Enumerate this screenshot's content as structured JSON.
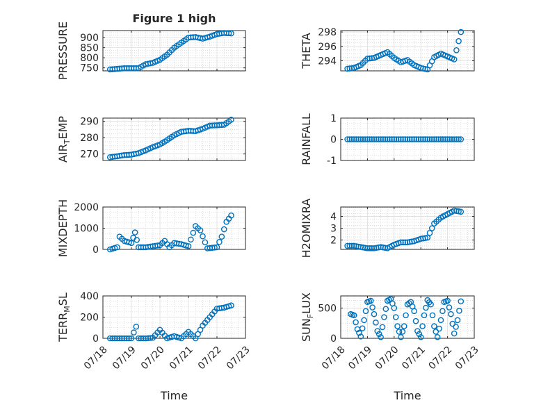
{
  "figure": {
    "title": "Figure 1 high",
    "xlabel": "Time",
    "colors": {
      "marker": "#0072BD",
      "axis": "#262626",
      "grid": "#c8c8c8",
      "background": "#ffffff"
    }
  },
  "chart_data": [
    {
      "type": "scatter",
      "title": "Figure 1 high",
      "ylabel": "PRESSURE",
      "xlabel": "",
      "x_axis": "date",
      "xlim": [
        "07/18",
        "07/23"
      ],
      "ylim": [
        735,
        935
      ],
      "yticks": [
        750,
        800,
        850,
        900
      ],
      "xticks": [
        "07/18",
        "07/19",
        "07/20",
        "07/21",
        "07/22",
        "07/23"
      ],
      "xtick_labels_shown": false,
      "grid": true,
      "minor_grid": true,
      "marker": "open-circle",
      "x": [
        "07/18 06:00",
        "07/18 12:00",
        "07/18 18:00",
        "07/19 00:00",
        "07/19 06:00",
        "07/19 12:00",
        "07/19 18:00",
        "07/20 00:00",
        "07/20 06:00",
        "07/20 12:00",
        "07/20 18:00",
        "07/21 00:00",
        "07/21 06:00",
        "07/21 12:00",
        "07/21 18:00",
        "07/22 00:00",
        "07/22 06:00",
        "07/22 12:00"
      ],
      "y": [
        742,
        745,
        748,
        748,
        748,
        768,
        775,
        790,
        815,
        850,
        875,
        900,
        903,
        895,
        905,
        918,
        923,
        921
      ]
    },
    {
      "type": "scatter",
      "title": "",
      "ylabel": "THETA",
      "xlabel": "",
      "x_axis": "date",
      "xlim": [
        "07/18",
        "07/23"
      ],
      "ylim": [
        292.6,
        298.2
      ],
      "yticks": [
        294,
        296,
        298
      ],
      "xticks": [
        "07/18",
        "07/19",
        "07/20",
        "07/21",
        "07/22",
        "07/23"
      ],
      "xtick_labels_shown": false,
      "grid": true,
      "minor_grid": true,
      "marker": "open-circle",
      "x": [
        "07/18 06:00",
        "07/18 12:00",
        "07/18 18:00",
        "07/19 00:00",
        "07/19 06:00",
        "07/19 12:00",
        "07/19 18:00",
        "07/20 00:00",
        "07/20 06:00",
        "07/20 12:00",
        "07/20 18:00",
        "07/21 00:00",
        "07/21 06:00",
        "07/21 12:00",
        "07/21 18:00",
        "07/22 00:00",
        "07/22 06:00",
        "07/22 12:00"
      ],
      "y": [
        292.9,
        293.0,
        293.4,
        294.3,
        294.4,
        294.8,
        295.2,
        294.4,
        293.8,
        294.1,
        293.4,
        293.0,
        292.8,
        294.5,
        295.0,
        294.6,
        294.2,
        298.0
      ]
    },
    {
      "type": "scatter",
      "title": "",
      "ylabel": "AIR_TEMP",
      "ylabel_main": "AIR",
      "ylabel_sub": "T",
      "ylabel_rest": "EMP",
      "xlabel": "",
      "x_axis": "date",
      "xlim": [
        "07/18",
        "07/23"
      ],
      "ylim": [
        266,
        292
      ],
      "yticks": [
        270,
        280,
        290
      ],
      "xticks": [
        "07/18",
        "07/19",
        "07/20",
        "07/21",
        "07/22",
        "07/23"
      ],
      "xtick_labels_shown": false,
      "grid": true,
      "minor_grid": true,
      "marker": "open-circle",
      "x": [
        "07/18 06:00",
        "07/18 12:00",
        "07/18 18:00",
        "07/19 00:00",
        "07/19 06:00",
        "07/19 12:00",
        "07/19 18:00",
        "07/20 00:00",
        "07/20 06:00",
        "07/20 12:00",
        "07/20 18:00",
        "07/21 00:00",
        "07/21 06:00",
        "07/21 12:00",
        "07/21 18:00",
        "07/22 00:00",
        "07/22 06:00",
        "07/22 12:00"
      ],
      "y": [
        268.0,
        268.6,
        269.3,
        269.6,
        270.5,
        272.2,
        274.2,
        275.8,
        278.5,
        281.5,
        283.6,
        284.2,
        284.0,
        285.5,
        287.4,
        287.6,
        287.9,
        291.0
      ]
    },
    {
      "type": "scatter",
      "title": "",
      "ylabel": "RAINFALL",
      "xlabel": "",
      "x_axis": "date",
      "xlim": [
        "07/18",
        "07/23"
      ],
      "ylim": [
        -1,
        1
      ],
      "yticks": [
        -1,
        0,
        1
      ],
      "xticks": [
        "07/18",
        "07/19",
        "07/20",
        "07/21",
        "07/22",
        "07/23"
      ],
      "xtick_labels_shown": false,
      "grid": true,
      "minor_grid": true,
      "marker": "open-circle",
      "x": [
        "07/18 06:00",
        "07/18 12:00",
        "07/18 18:00",
        "07/19 00:00",
        "07/19 06:00",
        "07/19 12:00",
        "07/19 18:00",
        "07/20 00:00",
        "07/20 06:00",
        "07/20 12:00",
        "07/20 18:00",
        "07/21 00:00",
        "07/21 06:00",
        "07/21 12:00",
        "07/21 18:00",
        "07/22 00:00",
        "07/22 06:00",
        "07/22 12:00"
      ],
      "y": [
        0,
        0,
        0,
        0,
        0,
        0,
        0,
        0,
        0,
        0,
        0,
        0,
        0,
        0,
        0,
        0,
        0,
        0
      ]
    },
    {
      "type": "scatter",
      "title": "",
      "ylabel": "MIXDEPTH",
      "xlabel": "",
      "x_axis": "date",
      "xlim": [
        "07/18",
        "07/23"
      ],
      "ylim": [
        0,
        2000
      ],
      "yticks": [
        0,
        1000,
        2000
      ],
      "xticks": [
        "07/18",
        "07/19",
        "07/20",
        "07/21",
        "07/22",
        "07/23"
      ],
      "xtick_labels_shown": false,
      "grid": true,
      "minor_grid": true,
      "marker": "open-circle",
      "x": [
        "07/18 06:00",
        "07/18 12:00",
        "07/18 14:00",
        "07/18 18:00",
        "07/19 00:00",
        "07/19 03:00",
        "07/19 06:00",
        "07/19 12:00",
        "07/19 18:00",
        "07/20 00:00",
        "07/20 04:00",
        "07/20 08:00",
        "07/20 12:00",
        "07/20 18:00",
        "07/21 00:00",
        "07/21 06:00",
        "07/21 10:00",
        "07/21 16:00",
        "07/22 00:00",
        "07/22 04:00",
        "07/22 08:00",
        "07/22 12:00"
      ],
      "y": [
        0,
        100,
        600,
        400,
        300,
        800,
        100,
        100,
        150,
        200,
        400,
        100,
        300,
        250,
        150,
        1100,
        900,
        50,
        100,
        600,
        1300,
        1600
      ]
    },
    {
      "type": "scatter",
      "title": "",
      "ylabel": "H2OMIXRA",
      "xlabel": "",
      "x_axis": "date",
      "xlim": [
        "07/18",
        "07/23"
      ],
      "ylim": [
        1.2,
        4.8
      ],
      "yticks": [
        2,
        3,
        4
      ],
      "xticks": [
        "07/18",
        "07/19",
        "07/20",
        "07/21",
        "07/22",
        "07/23"
      ],
      "xtick_labels_shown": false,
      "grid": true,
      "minor_grid": true,
      "marker": "open-circle",
      "x": [
        "07/18 06:00",
        "07/18 12:00",
        "07/18 18:00",
        "07/19 00:00",
        "07/19 06:00",
        "07/19 12:00",
        "07/19 18:00",
        "07/20 00:00",
        "07/20 06:00",
        "07/20 12:00",
        "07/20 18:00",
        "07/21 00:00",
        "07/21 06:00",
        "07/21 12:00",
        "07/21 18:00",
        "07/22 00:00",
        "07/22 06:00",
        "07/22 12:00"
      ],
      "y": [
        1.5,
        1.5,
        1.4,
        1.3,
        1.3,
        1.4,
        1.3,
        1.6,
        1.8,
        1.8,
        1.9,
        2.1,
        2.2,
        3.4,
        3.9,
        4.2,
        4.5,
        4.4
      ]
    },
    {
      "type": "scatter",
      "title": "",
      "ylabel": "TERR_MSL",
      "ylabel_main": "TERR",
      "ylabel_sub": "M",
      "ylabel_rest": "SL",
      "xlabel": "Time",
      "x_axis": "date",
      "xlim": [
        "07/18",
        "07/23"
      ],
      "ylim": [
        0,
        400
      ],
      "yticks": [
        0,
        200,
        400
      ],
      "xticks": [
        "07/18",
        "07/19",
        "07/20",
        "07/21",
        "07/22",
        "07/23"
      ],
      "xtick_labels_shown": true,
      "grid": true,
      "minor_grid": true,
      "marker": "open-circle",
      "x": [
        "07/18 06:00",
        "07/18 12:00",
        "07/18 18:00",
        "07/19 00:00",
        "07/19 04:00",
        "07/19 06:00",
        "07/19 12:00",
        "07/19 18:00",
        "07/20 00:00",
        "07/20 06:00",
        "07/20 12:00",
        "07/20 18:00",
        "07/21 00:00",
        "07/21 06:00",
        "07/21 12:00",
        "07/21 18:00",
        "07/22 00:00",
        "07/22 06:00",
        "07/22 12:00"
      ],
      "y": [
        0,
        0,
        0,
        0,
        110,
        0,
        0,
        5,
        80,
        0,
        20,
        0,
        60,
        0,
        120,
        200,
        280,
        290,
        310
      ]
    },
    {
      "type": "scatter",
      "title": "",
      "ylabel": "SUN_FLUX",
      "ylabel_main": "SUN",
      "ylabel_sub": "F",
      "ylabel_rest": "LUX",
      "xlabel": "Time",
      "x_axis": "date",
      "xlim": [
        "07/18",
        "07/23"
      ],
      "ylim": [
        0,
        700
      ],
      "yticks": [
        0,
        500
      ],
      "xticks": [
        "07/18",
        "07/19",
        "07/20",
        "07/21",
        "07/22",
        "07/23"
      ],
      "xtick_labels_shown": true,
      "grid": true,
      "minor_grid": true,
      "marker": "open-circle",
      "x": [
        "07/18 09:00",
        "07/18 12:00",
        "07/18 15:00",
        "07/18 18:00",
        "07/18 21:00",
        "07/19 00:00",
        "07/19 03:00",
        "07/19 06:00",
        "07/19 09:00",
        "07/19 12:00",
        "07/19 15:00",
        "07/19 18:00",
        "07/19 21:00",
        "07/20 00:00",
        "07/20 03:00",
        "07/20 06:00",
        "07/20 09:00",
        "07/20 12:00",
        "07/20 15:00",
        "07/20 18:00",
        "07/20 21:00",
        "07/21 00:00",
        "07/21 03:00",
        "07/21 06:00",
        "07/21 09:00",
        "07/21 12:00",
        "07/21 15:00",
        "07/21 18:00",
        "07/21 21:00",
        "07/22 00:00",
        "07/22 03:00",
        "07/22 06:00",
        "07/22 09:00",
        "07/22 12:00"
      ],
      "y": [
        400,
        380,
        150,
        30,
        300,
        600,
        620,
        400,
        120,
        20,
        350,
        620,
        650,
        500,
        200,
        20,
        200,
        560,
        600,
        450,
        120,
        20,
        380,
        630,
        560,
        200,
        20,
        300,
        600,
        620,
        400,
        80,
        300,
        610
      ]
    }
  ]
}
